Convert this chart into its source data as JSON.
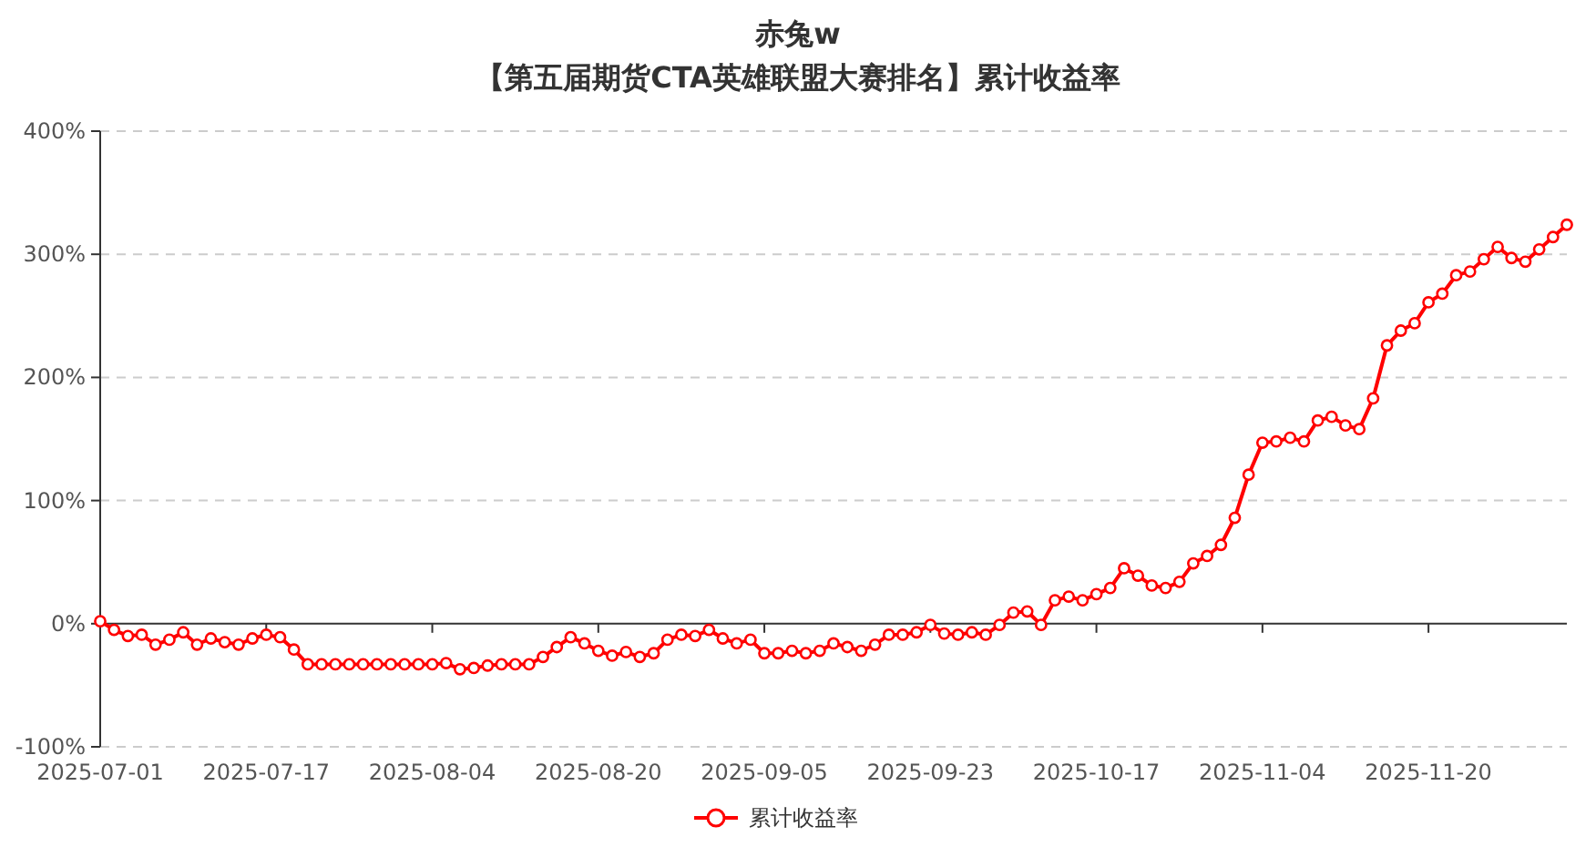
{
  "chart_data": {
    "type": "line",
    "title": "赤兔w",
    "subtitle": "【第五届期货CTA英雄联盟大赛排名】累计收益率",
    "categories": [
      "2025-07-01",
      null,
      null,
      null,
      null,
      null,
      null,
      null,
      null,
      null,
      null,
      null,
      "2025-07-17",
      null,
      null,
      null,
      null,
      null,
      null,
      null,
      null,
      null,
      null,
      null,
      "2025-08-04",
      null,
      null,
      null,
      null,
      null,
      null,
      null,
      null,
      null,
      null,
      null,
      "2025-08-20",
      null,
      null,
      null,
      null,
      null,
      null,
      null,
      null,
      null,
      null,
      null,
      "2025-09-05",
      null,
      null,
      null,
      null,
      null,
      null,
      null,
      null,
      null,
      null,
      null,
      "2025-09-23",
      null,
      null,
      null,
      null,
      null,
      null,
      null,
      null,
      null,
      null,
      null,
      "2025-10-17",
      null,
      null,
      null,
      null,
      null,
      null,
      null,
      null,
      null,
      null,
      null,
      "2025-11-04",
      null,
      null,
      null,
      null,
      null,
      null,
      null,
      null,
      null,
      null,
      null,
      "2025-11-20",
      null,
      null,
      null,
      null,
      null,
      null,
      null,
      null,
      null,
      null
    ],
    "series": [
      {
        "name": "累计收益率",
        "color": "#ff0000",
        "values": [
          2,
          -5,
          -10,
          -9,
          -17,
          -13,
          -7,
          -17,
          -12,
          -15,
          -17,
          -12,
          -9,
          -11,
          -21,
          -33,
          -33,
          -33,
          -33,
          -33,
          -33,
          -33,
          -33,
          -33,
          -33,
          -32,
          -37,
          -36,
          -34,
          -33,
          -33,
          -33,
          -27,
          -19,
          -11,
          -16,
          -22,
          -26,
          -23,
          -27,
          -24,
          -13,
          -9,
          -10,
          -5,
          -12,
          -16,
          -13,
          -24,
          -24,
          -22,
          -24,
          -22,
          -16,
          -19,
          -22,
          -17,
          -9,
          -9,
          -7,
          -1,
          -8,
          -9,
          -7,
          -9,
          -1,
          9,
          10,
          -1,
          19,
          22,
          19,
          24,
          29,
          45,
          39,
          31,
          29,
          34,
          49,
          55,
          64,
          86,
          121,
          147,
          148,
          151,
          148,
          165,
          168,
          161,
          158,
          183,
          226,
          238,
          244,
          261,
          268,
          283,
          286,
          296,
          306,
          297,
          294,
          304,
          314,
          324
        ]
      }
    ],
    "ylim": [
      -100,
      400
    ],
    "yticks": [
      {
        "value": -100,
        "label": "-100%"
      },
      {
        "value": 0,
        "label": "0%"
      },
      {
        "value": 100,
        "label": "100%"
      },
      {
        "value": 200,
        "label": "200%"
      },
      {
        "value": 300,
        "label": "300%"
      },
      {
        "value": 400,
        "label": "400%"
      }
    ],
    "grid": "y",
    "legend": "bottom",
    "marker": "circle",
    "line_style": "solid"
  }
}
